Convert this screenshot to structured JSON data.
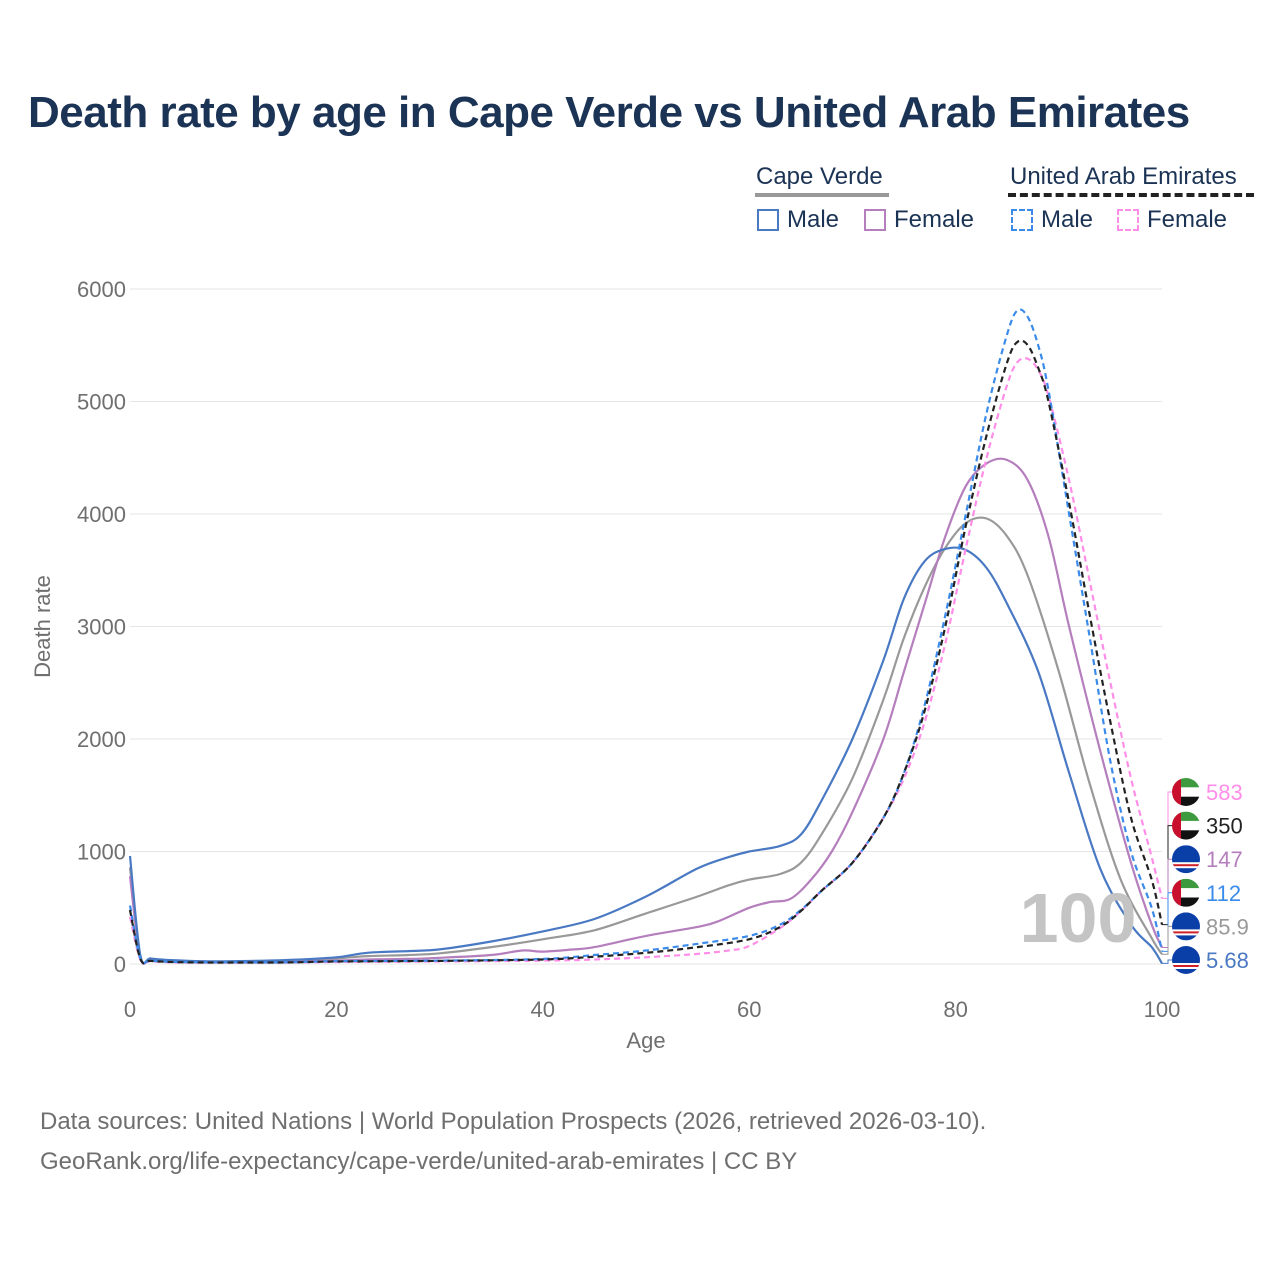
{
  "title": "Death rate by age in Cape Verde vs United Arab Emirates",
  "legend": {
    "groups": [
      {
        "name": "Cape Verde",
        "line_color": "#999999",
        "dashed": false,
        "items": [
          {
            "label": "Male",
            "color": "#4a79c3"
          },
          {
            "label": "Female",
            "color": "#b57ebd"
          }
        ]
      },
      {
        "name": "United Arab Emirates",
        "line_color": "#222222",
        "dashed": true,
        "items": [
          {
            "label": "Male",
            "color": "#3b8bea"
          },
          {
            "label": "Female",
            "color": "#ff8ee8"
          }
        ]
      }
    ]
  },
  "source_lines": [
    "Data sources: United Nations | World Population Prospects (2026, retrieved 2026-03-10).",
    "GeoRank.org/life-expectancy/cape-verde/united-arab-emirates | CC BY"
  ],
  "chart_data": {
    "type": "line",
    "title": "Death rate by age in Cape Verde vs United Arab Emirates",
    "xlabel": "Age",
    "ylabel": "Death rate",
    "xlim": [
      0,
      100
    ],
    "ylim": [
      0,
      6000
    ],
    "x_ticks": [
      0,
      20,
      40,
      60,
      80,
      100
    ],
    "y_ticks": [
      0,
      1000,
      2000,
      3000,
      4000,
      5000,
      6000
    ],
    "grid": true,
    "current_age_label": "100",
    "series": [
      {
        "name": "Cape Verde Male",
        "country": "Cape Verde",
        "color": "#4a79c3",
        "dashed": false,
        "end_label": "5.68",
        "points": [
          [
            0,
            960
          ],
          [
            1,
            80
          ],
          [
            2,
            50
          ],
          [
            4,
            35
          ],
          [
            7,
            25
          ],
          [
            10,
            25
          ],
          [
            15,
            35
          ],
          [
            20,
            60
          ],
          [
            23,
            100
          ],
          [
            27,
            115
          ],
          [
            30,
            130
          ],
          [
            35,
            200
          ],
          [
            40,
            290
          ],
          [
            45,
            400
          ],
          [
            50,
            600
          ],
          [
            55,
            850
          ],
          [
            58,
            950
          ],
          [
            60,
            1000
          ],
          [
            63,
            1050
          ],
          [
            65,
            1150
          ],
          [
            67,
            1450
          ],
          [
            70,
            2000
          ],
          [
            73,
            2700
          ],
          [
            75,
            3250
          ],
          [
            77,
            3580
          ],
          [
            79,
            3690
          ],
          [
            81,
            3680
          ],
          [
            83,
            3520
          ],
          [
            85,
            3200
          ],
          [
            88,
            2600
          ],
          [
            91,
            1700
          ],
          [
            94,
            850
          ],
          [
            97,
            350
          ],
          [
            99,
            150
          ],
          [
            100,
            5.68
          ]
        ]
      },
      {
        "name": "Cape Verde Total",
        "country": "Cape Verde",
        "color": "#999999",
        "dashed": false,
        "end_label": "85.9",
        "points": [
          [
            0,
            860
          ],
          [
            1,
            70
          ],
          [
            2,
            45
          ],
          [
            4,
            30
          ],
          [
            7,
            22
          ],
          [
            10,
            22
          ],
          [
            15,
            30
          ],
          [
            20,
            50
          ],
          [
            23,
            70
          ],
          [
            27,
            80
          ],
          [
            30,
            95
          ],
          [
            35,
            150
          ],
          [
            40,
            220
          ],
          [
            45,
            300
          ],
          [
            50,
            450
          ],
          [
            55,
            600
          ],
          [
            58,
            700
          ],
          [
            60,
            750
          ],
          [
            63,
            800
          ],
          [
            65,
            900
          ],
          [
            67,
            1150
          ],
          [
            70,
            1650
          ],
          [
            73,
            2350
          ],
          [
            75,
            2900
          ],
          [
            77,
            3350
          ],
          [
            79,
            3700
          ],
          [
            81,
            3920
          ],
          [
            83,
            3960
          ],
          [
            85,
            3800
          ],
          [
            87,
            3450
          ],
          [
            90,
            2600
          ],
          [
            93,
            1600
          ],
          [
            96,
            750
          ],
          [
            99,
            230
          ],
          [
            100,
            85.9
          ]
        ]
      },
      {
        "name": "Cape Verde Female",
        "country": "Cape Verde",
        "color": "#b57ebd",
        "dashed": false,
        "end_label": "147",
        "points": [
          [
            0,
            780
          ],
          [
            1,
            60
          ],
          [
            2,
            40
          ],
          [
            4,
            28
          ],
          [
            7,
            20
          ],
          [
            10,
            20
          ],
          [
            15,
            22
          ],
          [
            20,
            30
          ],
          [
            23,
            40
          ],
          [
            27,
            45
          ],
          [
            30,
            55
          ],
          [
            35,
            80
          ],
          [
            38,
            120
          ],
          [
            40,
            110
          ],
          [
            43,
            130
          ],
          [
            45,
            150
          ],
          [
            50,
            250
          ],
          [
            55,
            330
          ],
          [
            57,
            380
          ],
          [
            60,
            500
          ],
          [
            62,
            550
          ],
          [
            64,
            580
          ],
          [
            66,
            750
          ],
          [
            68,
            1000
          ],
          [
            70,
            1350
          ],
          [
            73,
            2000
          ],
          [
            75,
            2600
          ],
          [
            77,
            3200
          ],
          [
            79,
            3800
          ],
          [
            81,
            4250
          ],
          [
            83,
            4450
          ],
          [
            85,
            4480
          ],
          [
            87,
            4300
          ],
          [
            89,
            3800
          ],
          [
            91,
            3000
          ],
          [
            94,
            1900
          ],
          [
            97,
            900
          ],
          [
            99,
            350
          ],
          [
            100,
            147
          ]
        ]
      },
      {
        "name": "United Arab Emirates Male",
        "country": "United Arab Emirates",
        "color": "#3b8bea",
        "dashed": true,
        "end_label": "112",
        "points": [
          [
            0,
            520
          ],
          [
            1,
            50
          ],
          [
            2,
            30
          ],
          [
            4,
            20
          ],
          [
            7,
            15
          ],
          [
            10,
            15
          ],
          [
            15,
            15
          ],
          [
            20,
            25
          ],
          [
            30,
            30
          ],
          [
            40,
            45
          ],
          [
            45,
            80
          ],
          [
            50,
            120
          ],
          [
            55,
            180
          ],
          [
            60,
            250
          ],
          [
            63,
            350
          ],
          [
            65,
            480
          ],
          [
            67,
            650
          ],
          [
            70,
            900
          ],
          [
            73,
            1300
          ],
          [
            75,
            1700
          ],
          [
            77,
            2300
          ],
          [
            79,
            3100
          ],
          [
            81,
            4000
          ],
          [
            83,
            4900
          ],
          [
            85,
            5600
          ],
          [
            86,
            5810
          ],
          [
            87,
            5750
          ],
          [
            88,
            5500
          ],
          [
            89,
            5100
          ],
          [
            91,
            4000
          ],
          [
            93,
            2900
          ],
          [
            95,
            1800
          ],
          [
            97,
            1000
          ],
          [
            99,
            500
          ],
          [
            100,
            112
          ]
        ]
      },
      {
        "name": "United Arab Emirates Total",
        "country": "United Arab Emirates",
        "color": "#222222",
        "dashed": true,
        "end_label": "350",
        "points": [
          [
            0,
            480
          ],
          [
            1,
            45
          ],
          [
            2,
            28
          ],
          [
            4,
            18
          ],
          [
            7,
            13
          ],
          [
            10,
            13
          ],
          [
            15,
            14
          ],
          [
            20,
            22
          ],
          [
            30,
            28
          ],
          [
            40,
            40
          ],
          [
            45,
            65
          ],
          [
            50,
            100
          ],
          [
            55,
            150
          ],
          [
            60,
            220
          ],
          [
            63,
            330
          ],
          [
            65,
            470
          ],
          [
            67,
            650
          ],
          [
            70,
            900
          ],
          [
            73,
            1300
          ],
          [
            75,
            1700
          ],
          [
            77,
            2250
          ],
          [
            79,
            3000
          ],
          [
            81,
            3900
          ],
          [
            83,
            4700
          ],
          [
            85,
            5350
          ],
          [
            86,
            5530
          ],
          [
            87,
            5500
          ],
          [
            88,
            5300
          ],
          [
            89,
            5000
          ],
          [
            91,
            4100
          ],
          [
            93,
            3100
          ],
          [
            95,
            2150
          ],
          [
            97,
            1300
          ],
          [
            99,
            750
          ],
          [
            100,
            350
          ]
        ]
      },
      {
        "name": "United Arab Emirates Female",
        "country": "United Arab Emirates",
        "color": "#ff8ee8",
        "dashed": true,
        "end_label": "583",
        "points": [
          [
            0,
            420
          ],
          [
            1,
            40
          ],
          [
            2,
            25
          ],
          [
            4,
            15
          ],
          [
            7,
            12
          ],
          [
            10,
            12
          ],
          [
            15,
            12
          ],
          [
            20,
            18
          ],
          [
            30,
            22
          ],
          [
            40,
            30
          ],
          [
            45,
            40
          ],
          [
            50,
            60
          ],
          [
            55,
            90
          ],
          [
            58,
            120
          ],
          [
            60,
            160
          ],
          [
            63,
            320
          ],
          [
            65,
            470
          ],
          [
            67,
            650
          ],
          [
            70,
            900
          ],
          [
            73,
            1300
          ],
          [
            75,
            1650
          ],
          [
            77,
            2150
          ],
          [
            79,
            2850
          ],
          [
            81,
            3700
          ],
          [
            83,
            4500
          ],
          [
            85,
            5150
          ],
          [
            86,
            5350
          ],
          [
            87,
            5380
          ],
          [
            88,
            5280
          ],
          [
            89,
            5050
          ],
          [
            91,
            4300
          ],
          [
            93,
            3400
          ],
          [
            95,
            2500
          ],
          [
            97,
            1650
          ],
          [
            99,
            950
          ],
          [
            100,
            583
          ]
        ]
      }
    ]
  }
}
